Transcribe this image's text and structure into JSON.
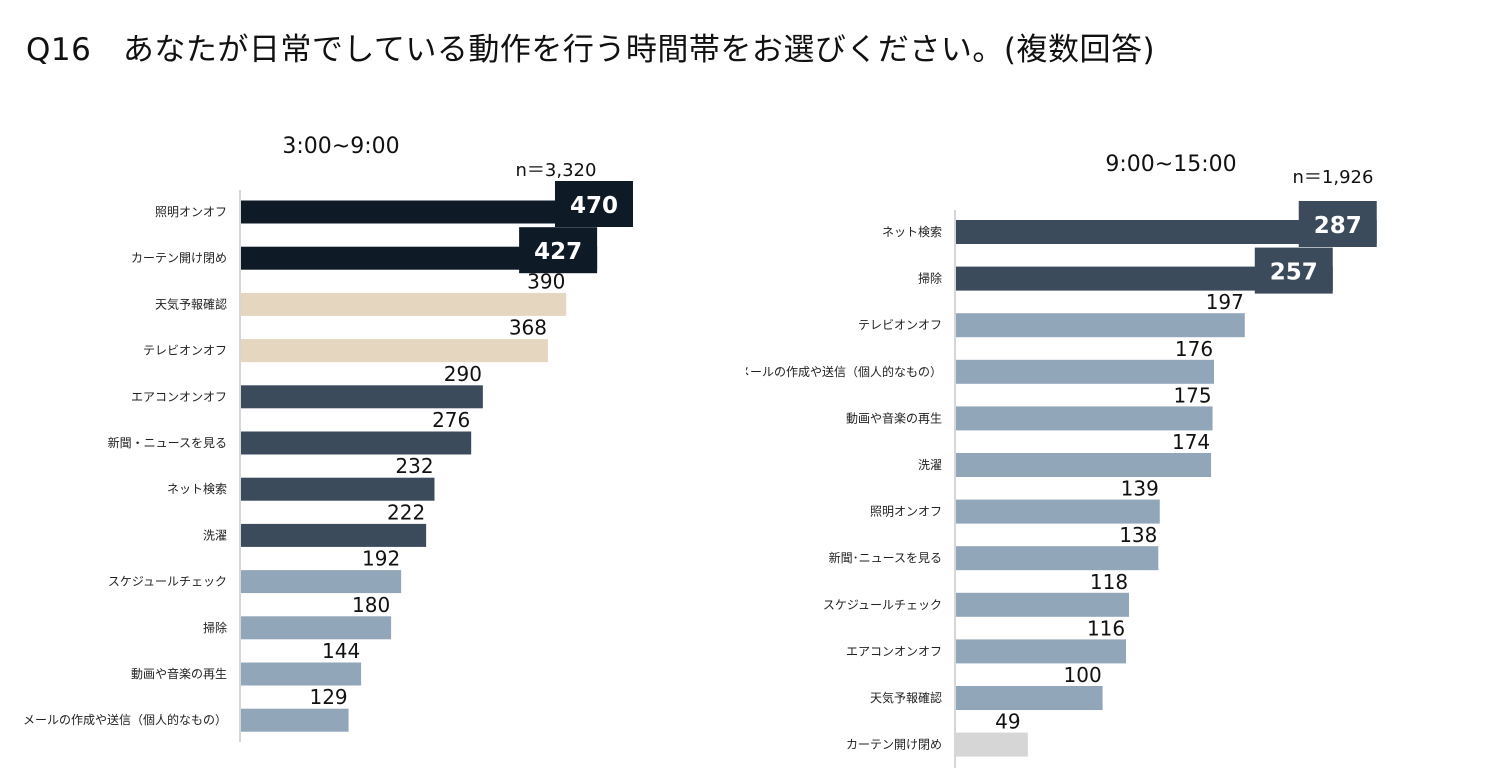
{
  "title": "Q16　あなたが日常でしている動作を行う時間帯をお選びください。(複数回答)",
  "colors": {
    "top": "#0e1a26",
    "top_right": "#3c4b5c",
    "beige": "#e5d7bf",
    "dark": "#3c4b5c",
    "light": "#92a6ba",
    "grey": "#d6d6d6",
    "axis": "#c8c8c8"
  },
  "chart_data": [
    {
      "type": "bar",
      "orientation": "horizontal",
      "title": "3:00~9:00",
      "n_label": "n＝3,320",
      "categories": [
        "照明オンオフ",
        "カーテン開け閉め",
        "天気予報確認",
        "テレビオンオフ",
        "エアコンオンオフ",
        "新聞・ニュースを見る",
        "ネット検索",
        "洗濯",
        "スケジュールチェック",
        "掃除",
        "動画や音楽の再生",
        "メールの作成や送信（個人的なもの）"
      ],
      "values": [
        470,
        427,
        390,
        368,
        290,
        276,
        232,
        222,
        192,
        180,
        144,
        129
      ],
      "styles": [
        "top",
        "top",
        "beige",
        "beige",
        "dark",
        "dark",
        "dark",
        "dark",
        "light",
        "light",
        "light",
        "light"
      ]
    },
    {
      "type": "bar",
      "orientation": "horizontal",
      "title": "9:00~15:00",
      "n_label": "n＝1,926",
      "categories": [
        "ネット検索",
        "掃除",
        "テレビオンオフ",
        "メールの作成や送信（個人的なもの）",
        "動画や音楽の再生",
        "洗濯",
        "照明オンオフ",
        "新聞･ニュースを見る",
        "スケジュールチェック",
        "エアコンオンオフ",
        "天気予報確認",
        "カーテン開け閉め"
      ],
      "values": [
        287,
        257,
        197,
        176,
        175,
        174,
        139,
        138,
        118,
        116,
        100,
        49
      ],
      "styles": [
        "top_right",
        "top_right",
        "light",
        "light",
        "light",
        "light",
        "light",
        "light",
        "light",
        "light",
        "light",
        "grey"
      ]
    }
  ]
}
